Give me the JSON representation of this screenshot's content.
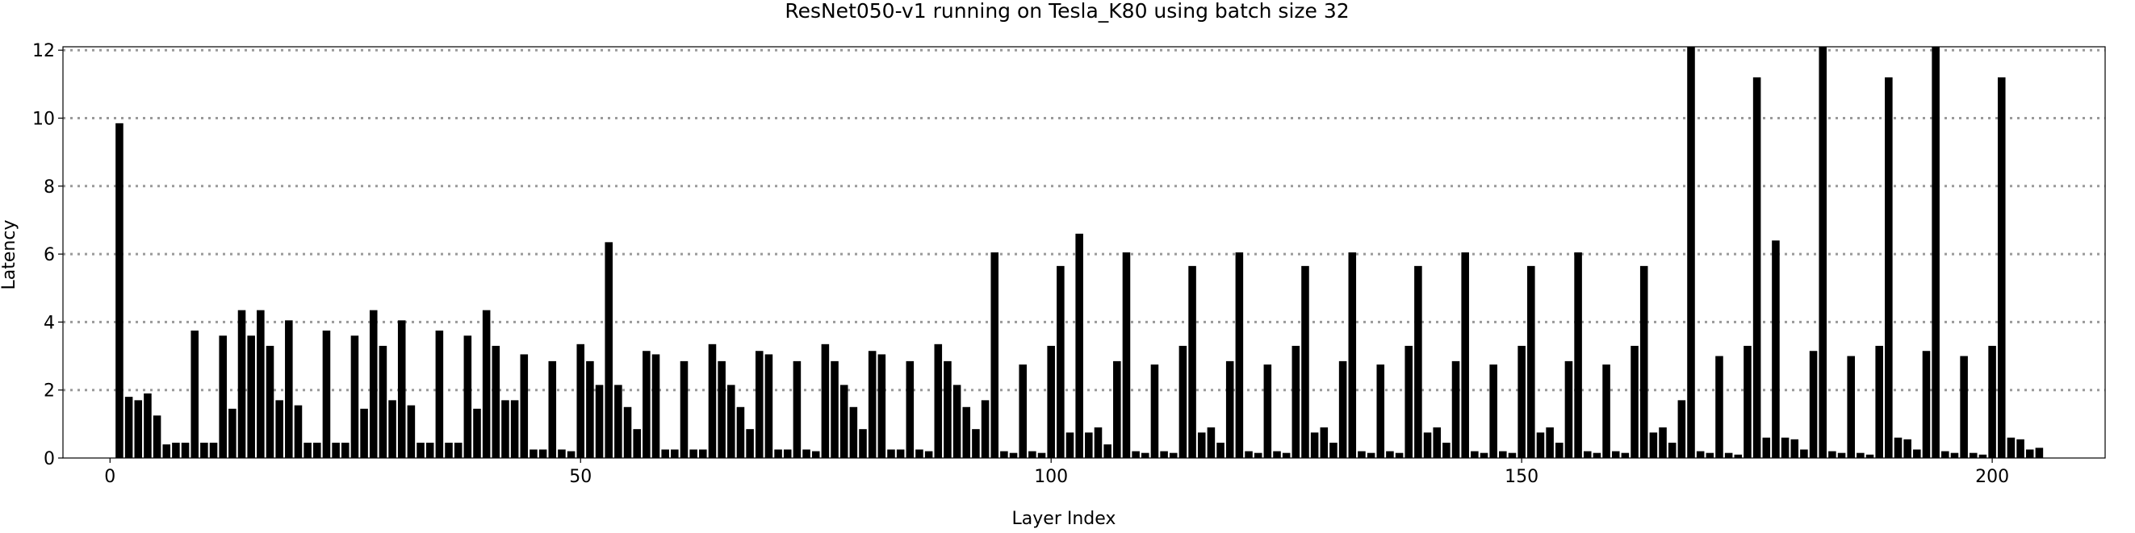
{
  "chart_data": {
    "type": "bar",
    "title": "ResNet050-v1 running on Tesla_K80 using batch size 32",
    "xlabel": "Layer Index",
    "ylabel": "Latency",
    "xlim": [
      -5,
      212
    ],
    "ylim": [
      0,
      12.1
    ],
    "x_ticks": [
      0,
      50,
      100,
      150,
      200
    ],
    "y_ticks": [
      0,
      2,
      4,
      6,
      8,
      10,
      12
    ],
    "grid": "horizontal dotted",
    "bar_color": "#000000",
    "x_start": 1,
    "values": [
      9.85,
      1.8,
      1.7,
      1.9,
      1.25,
      0.4,
      0.45,
      0.45,
      3.75,
      0.45,
      0.45,
      3.6,
      1.45,
      4.35,
      3.6,
      4.35,
      3.3,
      1.7,
      4.05,
      1.55,
      0.45,
      0.45,
      3.75,
      0.45,
      0.45,
      3.6,
      1.45,
      4.35,
      3.3,
      1.7,
      4.05,
      1.55,
      0.45,
      0.45,
      3.75,
      0.45,
      0.45,
      3.6,
      1.45,
      4.35,
      3.3,
      1.7,
      1.7,
      3.05,
      0.25,
      0.25,
      2.85,
      0.25,
      0.2,
      3.35,
      2.85,
      2.15,
      6.35,
      2.15,
      1.5,
      0.85,
      3.15,
      3.05,
      0.25,
      0.25,
      2.85,
      0.25,
      0.25,
      3.35,
      2.85,
      2.15,
      1.5,
      0.85,
      3.15,
      3.05,
      0.25,
      0.25,
      2.85,
      0.25,
      0.2,
      3.35,
      2.85,
      2.15,
      1.5,
      0.85,
      3.15,
      3.05,
      0.25,
      0.25,
      2.85,
      0.25,
      0.2,
      3.35,
      2.85,
      2.15,
      1.5,
      0.85,
      1.7,
      6.05,
      0.2,
      0.15,
      2.75,
      0.2,
      0.15,
      3.3,
      5.65,
      0.75,
      6.6,
      0.75,
      0.9,
      0.4,
      2.85,
      6.05,
      0.2,
      0.15,
      2.75,
      0.2,
      0.15,
      3.3,
      5.65,
      0.75,
      0.9,
      0.45,
      2.85,
      6.05,
      0.2,
      0.15,
      2.75,
      0.2,
      0.15,
      3.3,
      5.65,
      0.75,
      0.9,
      0.45,
      2.85,
      6.05,
      0.2,
      0.15,
      2.75,
      0.2,
      0.15,
      3.3,
      5.65,
      0.75,
      0.9,
      0.45,
      2.85,
      6.05,
      0.2,
      0.15,
      2.75,
      0.2,
      0.15,
      3.3,
      5.65,
      0.75,
      0.9,
      0.45,
      2.85,
      6.05,
      0.2,
      0.15,
      2.75,
      0.2,
      0.15,
      3.3,
      5.65,
      0.75,
      0.9,
      0.45,
      1.7,
      12.1,
      0.2,
      0.15,
      3.0,
      0.15,
      0.1,
      3.3,
      11.2,
      0.6,
      6.4,
      0.6,
      0.55,
      0.25,
      3.15,
      12.1,
      0.2,
      0.15,
      3.0,
      0.15,
      0.1,
      3.3,
      11.2,
      0.6,
      0.55,
      0.25,
      3.15,
      12.1,
      0.2,
      0.15,
      3.0,
      0.15,
      0.1,
      3.3,
      11.2,
      0.6,
      0.55,
      0.25,
      0.3
    ]
  }
}
